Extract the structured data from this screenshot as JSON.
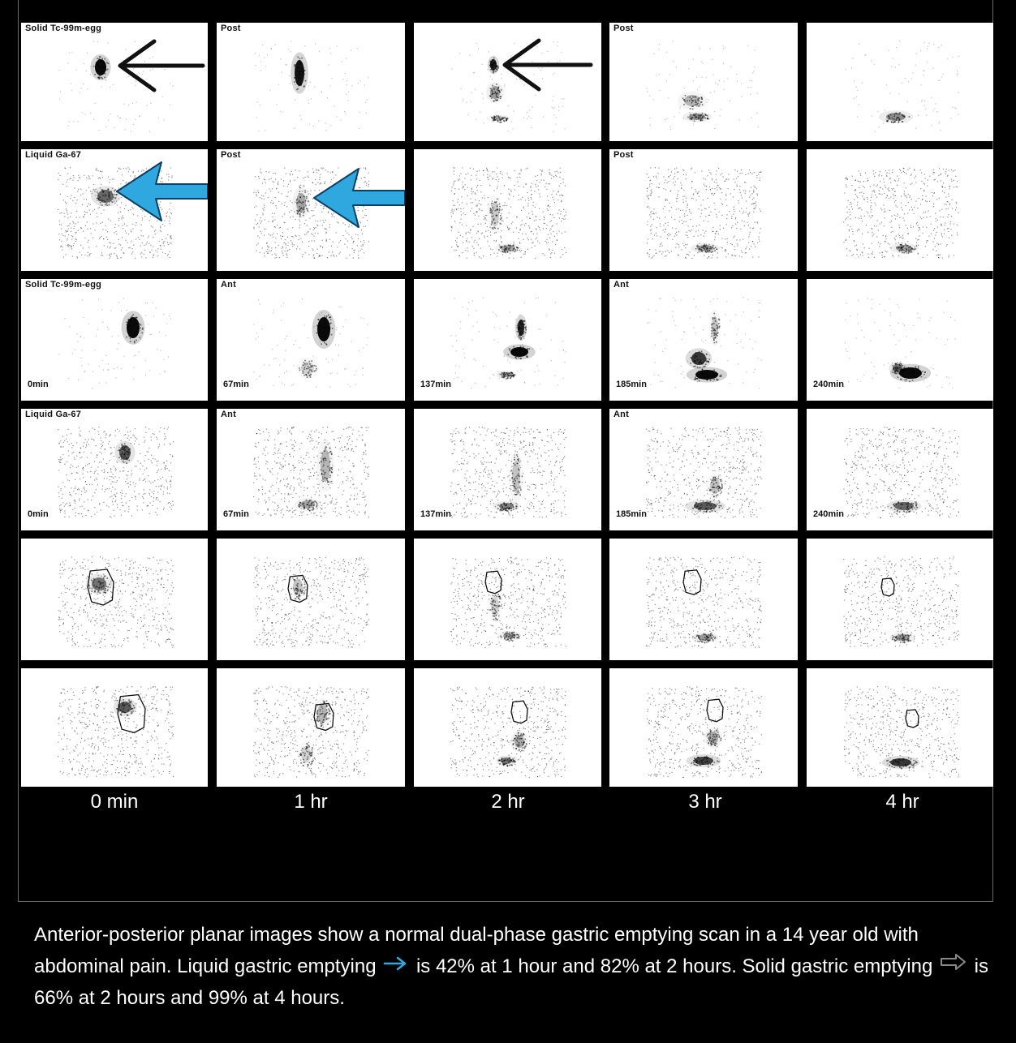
{
  "colors": {
    "blue_arrow": "#2fa8df",
    "grey_arrow": "#8a8a8a",
    "background": "#000000"
  },
  "grid": {
    "rows": [
      {
        "labels": [
          "Solid  Tc-99m-egg",
          "Post",
          "",
          "Post",
          ""
        ],
        "times": [
          "",
          "",
          "",
          "",
          ""
        ]
      },
      {
        "labels": [
          "Liquid  Ga-67",
          "Post",
          "",
          "Post",
          ""
        ],
        "times": [
          "",
          "",
          "",
          "",
          ""
        ]
      },
      {
        "labels": [
          "Solid  Tc-99m-egg",
          "Ant",
          "",
          "Ant",
          ""
        ],
        "times": [
          "0min",
          "67min",
          "137min",
          "185min",
          "240min"
        ]
      },
      {
        "labels": [
          "Liquid  Ga-67",
          "Ant",
          "",
          "Ant",
          ""
        ],
        "times": [
          "0min",
          "67min",
          "137min",
          "185min",
          "240min"
        ]
      },
      {
        "labels": [
          "",
          "",
          "",
          "",
          ""
        ],
        "times": [
          "",
          "",
          "",
          "",
          ""
        ]
      },
      {
        "labels": [
          "",
          "",
          "",
          "",
          ""
        ],
        "times": [
          "",
          "",
          "",
          "",
          ""
        ]
      }
    ],
    "column_labels": [
      "0 min",
      "1 hr",
      "2 hr",
      "3 hr",
      "4 hr"
    ]
  },
  "caption": {
    "part1": "Anterior-posterior planar images show a normal dual-phase gastric emptying scan in a 14 year old with abdominal pain. Liquid gastric emptying",
    "part2": "is 42% at 1 hour and 82% at 2 hours. Solid gastric emptying",
    "part3": "is 66% at 2 hours and 99% at 4 hours."
  }
}
